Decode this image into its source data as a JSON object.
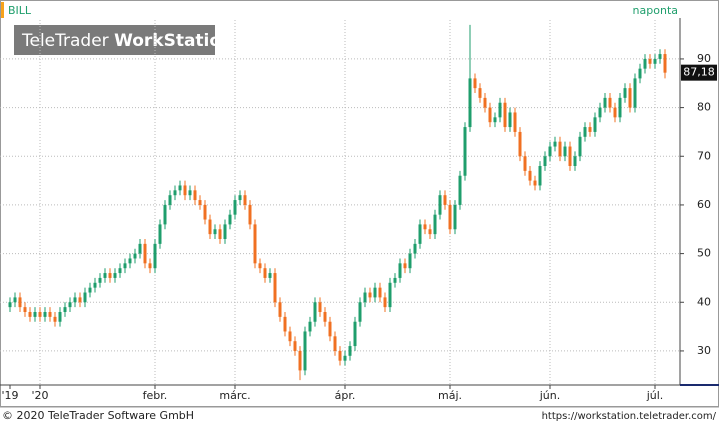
{
  "chart_data": {
    "type": "candlestick",
    "symbol": "BILL",
    "period": "naponta",
    "watermark": [
      "TeleTrader",
      "WorkStation"
    ],
    "footer_left": "© 2020 TeleTrader Software GmbH",
    "footer_right": "https://workstation.teletrader.com/",
    "last_label": "87,18",
    "up_color": "#1f9e6c",
    "down_color": "#f07022",
    "grid": true,
    "ylim": [
      23,
      98
    ],
    "yticks": [
      30,
      40,
      50,
      60,
      70,
      80,
      90
    ],
    "categories": [
      "'19",
      null,
      null,
      null,
      null,
      null,
      "'20",
      null,
      null,
      null,
      null,
      null,
      null,
      null,
      null,
      null,
      null,
      null,
      null,
      null,
      null,
      null,
      null,
      null,
      null,
      null,
      null,
      null,
      null,
      "febr.",
      null,
      null,
      null,
      null,
      null,
      null,
      null,
      null,
      null,
      null,
      null,
      null,
      null,
      null,
      null,
      "márc.",
      null,
      null,
      null,
      null,
      null,
      null,
      null,
      null,
      null,
      null,
      null,
      null,
      null,
      null,
      null,
      null,
      null,
      null,
      null,
      null,
      null,
      "ápr.",
      null,
      null,
      null,
      null,
      null,
      null,
      null,
      null,
      null,
      null,
      null,
      null,
      null,
      null,
      null,
      null,
      null,
      null,
      null,
      null,
      "máj.",
      null,
      null,
      null,
      null,
      null,
      null,
      null,
      null,
      null,
      null,
      null,
      null,
      null,
      null,
      null,
      null,
      null,
      null,
      null,
      "jún.",
      null,
      null,
      null,
      null,
      null,
      null,
      null,
      null,
      null,
      null,
      null,
      null,
      null,
      null,
      null,
      null,
      null,
      null,
      null,
      null,
      "júl.",
      null,
      null
    ],
    "open": [
      39,
      40,
      41,
      39,
      38,
      37,
      38,
      37,
      38,
      37,
      36,
      38,
      39,
      40,
      41,
      40,
      42,
      43,
      44,
      45,
      46,
      45,
      46,
      47,
      48,
      49,
      50,
      52,
      48,
      47,
      52,
      56,
      60,
      62,
      63,
      64,
      62,
      63,
      61,
      60,
      57,
      54,
      55,
      53,
      56,
      58,
      61,
      62,
      60,
      56,
      48,
      47,
      45,
      46,
      40,
      37,
      34,
      32,
      30,
      26,
      34,
      36,
      40,
      38,
      36,
      33,
      30,
      28,
      29,
      31,
      36,
      40,
      42,
      41,
      43,
      41,
      39,
      44,
      45,
      48,
      47,
      50,
      52,
      56,
      55,
      54,
      58,
      62,
      60,
      55,
      60,
      66,
      76,
      86,
      84,
      82,
      80,
      77,
      78,
      81,
      76,
      79,
      75,
      70,
      67,
      65,
      64,
      68,
      70,
      72,
      73,
      70,
      72,
      68,
      70,
      74,
      76,
      75,
      78,
      80,
      82,
      80,
      78,
      82,
      84,
      80,
      86,
      88,
      90,
      89,
      90,
      91
    ],
    "high": [
      41,
      42,
      42,
      40,
      39,
      39,
      39,
      39,
      39,
      38,
      39,
      40,
      41,
      42,
      42,
      43,
      44,
      45,
      46,
      47,
      47,
      47,
      48,
      49,
      50,
      51,
      53,
      53,
      49,
      53,
      57,
      61,
      63,
      64,
      65,
      65,
      64,
      64,
      62,
      61,
      58,
      56,
      56,
      57,
      59,
      62,
      63,
      63,
      61,
      57,
      49,
      48,
      47,
      47,
      41,
      38,
      35,
      33,
      31,
      35,
      37,
      41,
      41,
      39,
      37,
      34,
      31,
      30,
      32,
      37,
      41,
      43,
      43,
      44,
      44,
      42,
      45,
      46,
      49,
      49,
      51,
      53,
      57,
      57,
      56,
      59,
      63,
      63,
      61,
      61,
      67,
      77,
      97,
      87,
      85,
      83,
      81,
      79,
      82,
      82,
      80,
      80,
      76,
      71,
      68,
      66,
      69,
      71,
      73,
      74,
      74,
      73,
      73,
      71,
      75,
      77,
      77,
      79,
      81,
      83,
      83,
      81,
      83,
      85,
      85,
      87,
      89,
      91,
      91,
      91,
      92,
      92
    ],
    "low": [
      38,
      39,
      38,
      37,
      36,
      36,
      36,
      36,
      36,
      35,
      35,
      37,
      38,
      39,
      39,
      39,
      41,
      42,
      43,
      44,
      44,
      44,
      45,
      46,
      47,
      48,
      49,
      47,
      46,
      46,
      51,
      55,
      59,
      61,
      62,
      61,
      61,
      60,
      59,
      56,
      53,
      53,
      52,
      52,
      55,
      57,
      60,
      59,
      55,
      47,
      46,
      44,
      44,
      39,
      36,
      33,
      31,
      29,
      24,
      25,
      33,
      35,
      37,
      35,
      32,
      29,
      27,
      27,
      28,
      30,
      35,
      39,
      40,
      40,
      40,
      38,
      38,
      43,
      44,
      46,
      46,
      49,
      51,
      54,
      53,
      53,
      57,
      59,
      54,
      54,
      59,
      65,
      75,
      83,
      81,
      79,
      76,
      76,
      77,
      75,
      75,
      74,
      69,
      66,
      64,
      63,
      63,
      67,
      69,
      71,
      69,
      69,
      67,
      67,
      69,
      73,
      74,
      74,
      77,
      79,
      79,
      77,
      77,
      81,
      79,
      79,
      85,
      87,
      88,
      88,
      89,
      86
    ],
    "close": [
      40,
      41,
      39,
      38,
      37,
      38,
      37,
      38,
      37,
      36,
      38,
      39,
      40,
      41,
      40,
      42,
      43,
      44,
      45,
      46,
      45,
      46,
      47,
      48,
      49,
      50,
      52,
      48,
      47,
      52,
      56,
      60,
      62,
      63,
      64,
      62,
      63,
      61,
      60,
      57,
      54,
      55,
      53,
      56,
      58,
      61,
      62,
      60,
      56,
      48,
      47,
      45,
      46,
      40,
      37,
      34,
      32,
      30,
      26,
      34,
      36,
      40,
      38,
      36,
      33,
      30,
      28,
      29,
      31,
      36,
      40,
      42,
      41,
      43,
      41,
      39,
      44,
      45,
      48,
      47,
      50,
      52,
      56,
      55,
      54,
      58,
      62,
      60,
      55,
      60,
      66,
      76,
      86,
      84,
      82,
      80,
      77,
      78,
      81,
      76,
      79,
      75,
      70,
      67,
      65,
      64,
      68,
      70,
      72,
      73,
      70,
      72,
      68,
      70,
      74,
      76,
      75,
      78,
      80,
      82,
      80,
      78,
      82,
      84,
      80,
      86,
      88,
      90,
      89,
      90,
      91,
      87.18
    ]
  }
}
